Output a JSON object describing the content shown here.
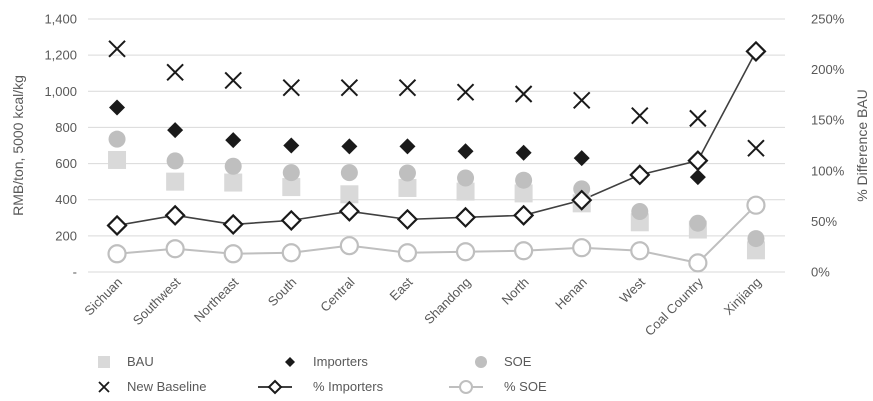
{
  "chart_data": {
    "type": "scatter",
    "categories": [
      "Sichuan",
      "Southwest",
      "Northeast",
      "South",
      "Central",
      "East",
      "Shandong",
      "North",
      "Henan",
      "West",
      "Coal Country",
      "Xinjiang"
    ],
    "y_left": {
      "label": "RMB/ton, 5000 kcal/kg",
      "range": [
        0,
        1400
      ],
      "ticks": [
        0,
        200,
        400,
        600,
        800,
        1000,
        1200,
        1400
      ],
      "tick_labels": [
        "-",
        "200",
        "400",
        "600",
        "800",
        "1,000",
        "1,200",
        "1,400"
      ]
    },
    "y_right": {
      "label": "% Difference BAU",
      "range": [
        0,
        250
      ],
      "ticks": [
        0,
        50,
        100,
        150,
        200,
        250
      ],
      "tick_labels": [
        "0%",
        "50%",
        "100%",
        "150%",
        "200%",
        "250%"
      ]
    },
    "grid": true,
    "legend_position": "bottom",
    "series": [
      {
        "name": "BAU",
        "axis": "left",
        "marker": "square",
        "color": "#d9d9d9",
        "values": [
          620,
          500,
          495,
          470,
          430,
          465,
          445,
          435,
          380,
          275,
          235,
          120
        ]
      },
      {
        "name": "Importers",
        "axis": "left",
        "marker": "diamond",
        "color": "#1a1a1a",
        "values": [
          910,
          785,
          730,
          700,
          695,
          695,
          668,
          660,
          630,
          545,
          525,
          365
        ]
      },
      {
        "name": "SOE",
        "axis": "left",
        "marker": "circle",
        "color": "#bfbfbf",
        "values": [
          735,
          615,
          585,
          550,
          550,
          548,
          520,
          508,
          460,
          335,
          270,
          185
        ]
      },
      {
        "name": "New Baseline",
        "axis": "left",
        "marker": "x",
        "color": "#1a1a1a",
        "values": [
          1235,
          1105,
          1060,
          1020,
          1020,
          1020,
          995,
          985,
          950,
          865,
          850,
          685
        ]
      },
      {
        "name": "% Importers",
        "axis": "right",
        "marker": "line-diamond",
        "color": "#404040",
        "values": [
          46,
          56,
          47,
          51,
          60,
          52,
          54,
          56,
          71,
          96,
          110,
          218
        ]
      },
      {
        "name": "% SOE",
        "axis": "right",
        "marker": "line-circle",
        "color": "#bfbfbf",
        "values": [
          18,
          23,
          18,
          19,
          26,
          19,
          20,
          21,
          24,
          21,
          9,
          66
        ]
      }
    ]
  }
}
